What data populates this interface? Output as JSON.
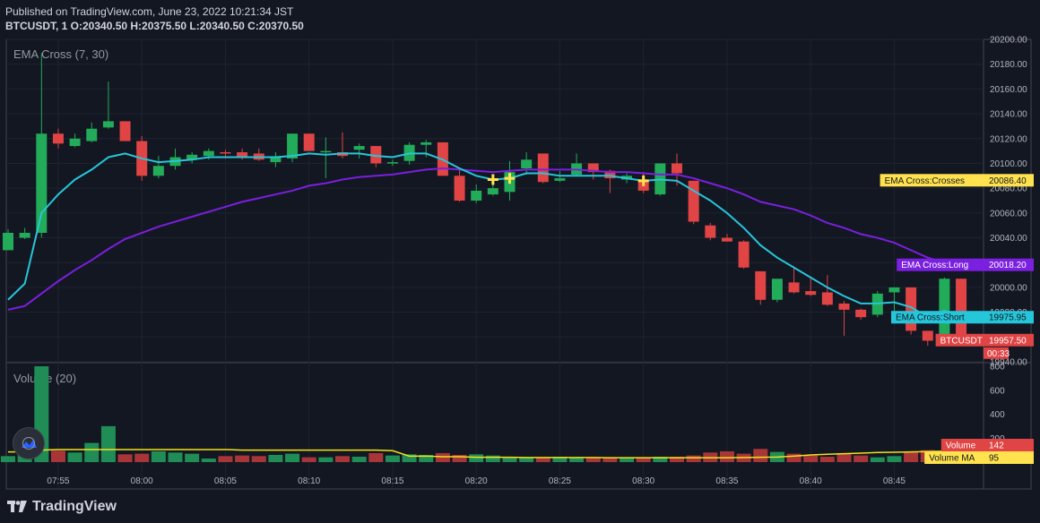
{
  "header": {
    "published": "Published on TradingView.com, June 23, 2022 10:21:34 JST",
    "ohlc": "BTCUSDT, 1  O:20340.50  H:20375.50  L:20340.50  C:20370.50"
  },
  "footer": {
    "brand": "TradingView"
  },
  "colors": {
    "background": "#131722",
    "up": "#26a69a",
    "down": "#ef5350",
    "up_display": "#22ab59",
    "down_display": "#e04444",
    "ema_short": "#26c6da",
    "ema_long": "#7b1fe0",
    "volume_ma": "#f2e21b",
    "cross_marker": "#ffe24d"
  },
  "chart_data": {
    "type": "candlestick",
    "indicator_label": "EMA Cross (7, 30)",
    "volume_label": "Volume (20)",
    "x_ticks": [
      "07:55",
      "08:00",
      "08:05",
      "08:10",
      "08:15",
      "08:20",
      "08:25",
      "08:30",
      "08:35",
      "08:40",
      "08:45"
    ],
    "x_tick_index": [
      3,
      8,
      13,
      18,
      23,
      28,
      33,
      38,
      43,
      48,
      53
    ],
    "y_ticks": [
      "20200.00",
      "20180.00",
      "20160.00",
      "20140.00",
      "20120.00",
      "20100.00",
      "20080.00",
      "20060.00",
      "20040.00",
      "20020.00",
      "20000.00",
      "19980.00",
      "19960.00",
      "19940.00"
    ],
    "ylim": [
      19940,
      20200
    ],
    "volume_ticks": [
      "800",
      "600",
      "400",
      "200"
    ],
    "volume_ylim": [
      0,
      800
    ],
    "candles": [
      {
        "o": 20030,
        "h": 20047,
        "l": 20030,
        "c": 20044
      },
      {
        "o": 20040,
        "h": 20048,
        "l": 20039,
        "c": 20044
      },
      {
        "o": 20044,
        "h": 20189,
        "l": 20040,
        "c": 20124
      },
      {
        "o": 20124,
        "h": 20128,
        "l": 20112,
        "c": 20116
      },
      {
        "o": 20114,
        "h": 20124,
        "l": 20113,
        "c": 20120
      },
      {
        "o": 20118,
        "h": 20133,
        "l": 20117,
        "c": 20128
      },
      {
        "o": 20129,
        "h": 20166,
        "l": 20128,
        "c": 20134
      },
      {
        "o": 20134,
        "h": 20134,
        "l": 20118,
        "c": 20118
      },
      {
        "o": 20118,
        "h": 20122,
        "l": 20086,
        "c": 20090
      },
      {
        "o": 20090,
        "h": 20106,
        "l": 20088,
        "c": 20098
      },
      {
        "o": 20098,
        "h": 20112,
        "l": 20095,
        "c": 20105
      },
      {
        "o": 20103,
        "h": 20109,
        "l": 20100,
        "c": 20107
      },
      {
        "o": 20106,
        "h": 20112,
        "l": 20103,
        "c": 20110
      },
      {
        "o": 20109,
        "h": 20111,
        "l": 20104,
        "c": 20108
      },
      {
        "o": 20109,
        "h": 20112,
        "l": 20103,
        "c": 20105
      },
      {
        "o": 20108,
        "h": 20112,
        "l": 20102,
        "c": 20103
      },
      {
        "o": 20101,
        "h": 20109,
        "l": 20097,
        "c": 20105
      },
      {
        "o": 20104,
        "h": 20124,
        "l": 20101,
        "c": 20124
      },
      {
        "o": 20124,
        "h": 20124,
        "l": 20110,
        "c": 20110
      },
      {
        "o": 20110,
        "h": 20121,
        "l": 20088,
        "c": 20110
      },
      {
        "o": 20109,
        "h": 20125,
        "l": 20104,
        "c": 20106
      },
      {
        "o": 20111,
        "h": 20116,
        "l": 20104,
        "c": 20114
      },
      {
        "o": 20114,
        "h": 20114,
        "l": 20097,
        "c": 20100
      },
      {
        "o": 20100,
        "h": 20103,
        "l": 20098,
        "c": 20101
      },
      {
        "o": 20102,
        "h": 20117,
        "l": 20099,
        "c": 20115
      },
      {
        "o": 20115,
        "h": 20119,
        "l": 20105,
        "c": 20117
      },
      {
        "o": 20117,
        "h": 20117,
        "l": 20090,
        "c": 20090
      },
      {
        "o": 20090,
        "h": 20096,
        "l": 20069,
        "c": 20070
      },
      {
        "o": 20070,
        "h": 20083,
        "l": 20068,
        "c": 20078
      },
      {
        "o": 20075,
        "h": 20085,
        "l": 20074,
        "c": 20080
      },
      {
        "o": 20077,
        "h": 20102,
        "l": 20070,
        "c": 20093
      },
      {
        "o": 20096,
        "h": 20109,
        "l": 20091,
        "c": 20103
      },
      {
        "o": 20108,
        "h": 20108,
        "l": 20084,
        "c": 20085
      },
      {
        "o": 20086,
        "h": 20094,
        "l": 20085,
        "c": 20088
      },
      {
        "o": 20091,
        "h": 20108,
        "l": 20090,
        "c": 20100
      },
      {
        "o": 20100,
        "h": 20100,
        "l": 20087,
        "c": 20093
      },
      {
        "o": 20094,
        "h": 20095,
        "l": 20076,
        "c": 20088
      },
      {
        "o": 20087,
        "h": 20092,
        "l": 20084,
        "c": 20090
      },
      {
        "o": 20087,
        "h": 20093,
        "l": 20076,
        "c": 20078
      },
      {
        "o": 20075,
        "h": 20098,
        "l": 20074,
        "c": 20100
      },
      {
        "o": 20100,
        "h": 20108,
        "l": 20082,
        "c": 20092
      },
      {
        "o": 20086,
        "h": 20086,
        "l": 20051,
        "c": 20053
      },
      {
        "o": 20050,
        "h": 20052,
        "l": 20038,
        "c": 20040
      },
      {
        "o": 20040,
        "h": 20043,
        "l": 20037,
        "c": 20037
      },
      {
        "o": 20037,
        "h": 20038,
        "l": 20015,
        "c": 20016
      },
      {
        "o": 20013,
        "h": 20013,
        "l": 19986,
        "c": 19990
      },
      {
        "o": 19990,
        "h": 20006,
        "l": 19988,
        "c": 20007
      },
      {
        "o": 20004,
        "h": 20017,
        "l": 19995,
        "c": 19996
      },
      {
        "o": 19997,
        "h": 20008,
        "l": 19993,
        "c": 19994
      },
      {
        "o": 19996,
        "h": 20010,
        "l": 19985,
        "c": 19986
      },
      {
        "o": 19987,
        "h": 19989,
        "l": 19961,
        "c": 19982
      },
      {
        "o": 19982,
        "h": 19983,
        "l": 19974,
        "c": 19976
      },
      {
        "o": 19978,
        "h": 19997,
        "l": 19976,
        "c": 19995
      },
      {
        "o": 19996,
        "h": 20000,
        "l": 19975,
        "c": 20000
      },
      {
        "o": 20000,
        "h": 20000,
        "l": 19962,
        "c": 19965
      },
      {
        "o": 19965,
        "h": 19965,
        "l": 19953,
        "c": 19957
      },
      {
        "o": 19960,
        "h": 20008,
        "l": 19959,
        "c": 20007
      },
      {
        "o": 20007,
        "h": 20007,
        "l": 19957,
        "c": 19958
      }
    ],
    "volume": [
      50,
      65,
      800,
      95,
      80,
      160,
      300,
      65,
      70,
      90,
      80,
      70,
      30,
      50,
      55,
      50,
      60,
      70,
      40,
      40,
      50,
      45,
      75,
      55,
      65,
      60,
      75,
      60,
      65,
      55,
      45,
      35,
      40,
      45,
      40,
      35,
      35,
      40,
      40,
      45,
      45,
      55,
      80,
      90,
      70,
      110,
      85,
      70,
      55,
      45,
      75,
      55,
      40,
      50,
      85,
      100,
      60,
      142
    ],
    "volume_ma": [
      85,
      85,
      100,
      105,
      105,
      105,
      105,
      105,
      105,
      105,
      105,
      105,
      105,
      105,
      100,
      100,
      100,
      100,
      100,
      100,
      100,
      100,
      100,
      95,
      50,
      50,
      45,
      45,
      40,
      40,
      40,
      38,
      38,
      38,
      38,
      38,
      36,
      36,
      36,
      36,
      36,
      36,
      36,
      36,
      38,
      40,
      42,
      50,
      60,
      65,
      70,
      75,
      80,
      82,
      85,
      88,
      92,
      95
    ],
    "ema_short": [
      19990,
      20003,
      20060,
      20075,
      20087,
      20095,
      20105,
      20108,
      20104,
      20101,
      20102,
      20103,
      20105,
      20105,
      20105,
      20105,
      20105,
      20106,
      20108,
      20107,
      20108,
      20108,
      20106,
      20105,
      20108,
      20108,
      20103,
      20096,
      20090,
      20087,
      20088,
      20092,
      20092,
      20090,
      20090,
      20090,
      20090,
      20088,
      20086,
      20087,
      20086,
      20078,
      20070,
      20060,
      20048,
      20034,
      20024,
      20016,
      20008,
      20000,
      19993,
      19987,
      19987,
      19988,
      19984,
      19976,
      19981,
      19976
    ],
    "ema_long": [
      19982,
      19985,
      19995,
      20005,
      20014,
      20022,
      20031,
      20039,
      20044,
      20049,
      20053,
      20057,
      20061,
      20065,
      20069,
      20072,
      20075,
      20078,
      20082,
      20084,
      20087,
      20089,
      20090,
      20091,
      20093,
      20095,
      20096,
      20095,
      20094,
      20093,
      20094,
      20095,
      20095,
      20095,
      20095,
      20094,
      20093,
      20093,
      20092,
      20091,
      20091,
      20088,
      20084,
      20080,
      20075,
      20069,
      20066,
      20063,
      20058,
      20052,
      20048,
      20043,
      20040,
      20036,
      20030,
      20024,
      20020,
      20018
    ],
    "cross_markers": [
      29,
      30,
      38
    ],
    "last_labels": [
      {
        "text": "EMA Cross:Crosses",
        "value": "20086.40",
        "bg": "#ffe24d",
        "fg": "#131722"
      },
      {
        "text": "EMA Cross:Long",
        "value": "20018.20",
        "bg": "#7b1fe0",
        "fg": "#ffffff"
      },
      {
        "text": "EMA Cross:Short",
        "value": "19975.95",
        "bg": "#26c6da",
        "fg": "#131722"
      },
      {
        "text": "BTCUSDT",
        "value": "19957.50",
        "bg": "#e04444",
        "fg": "#ffffff"
      }
    ],
    "countdown": "00:33",
    "volume_labels": [
      {
        "text": "Volume",
        "value": "142",
        "bg": "#e04444",
        "fg": "#ffffff"
      },
      {
        "text": "Volume MA",
        "value": "95",
        "bg": "#ffe24d",
        "fg": "#131722"
      }
    ]
  }
}
